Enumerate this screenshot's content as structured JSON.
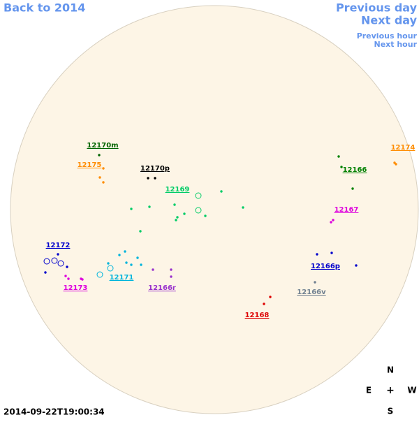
{
  "nav": {
    "back": "Back to 2014",
    "previous_day": "Previous day",
    "next_day": "Next day",
    "previous_hour": "Previous hour",
    "next_hour": "Next hour"
  },
  "timestamp": "2014-09-22T19:00:34",
  "compass": {
    "north": "N",
    "east": "E",
    "center": "+",
    "west": "W",
    "south": "S"
  },
  "regions": [
    {
      "label": "12170m",
      "color": "#006400"
    },
    {
      "label": "12175",
      "color": "#ff8c00"
    },
    {
      "label": "12170p",
      "color": "#000000"
    },
    {
      "label": "12169",
      "color": "#00cc66"
    },
    {
      "label": "12166",
      "color": "#008000"
    },
    {
      "label": "12174",
      "color": "#ff8c00"
    },
    {
      "label": "12167",
      "color": "#dd00dd"
    },
    {
      "label": "12172",
      "color": "#0000cc"
    },
    {
      "label": "12173",
      "color": "#dd00dd"
    },
    {
      "label": "12171",
      "color": "#00b4dc"
    },
    {
      "label": "12166r",
      "color": "#9932cc"
    },
    {
      "label": "12166p",
      "color": "#0000cc"
    },
    {
      "label": "12166v",
      "color": "#708090"
    },
    {
      "label": "12168",
      "color": "#dd0000"
    }
  ]
}
